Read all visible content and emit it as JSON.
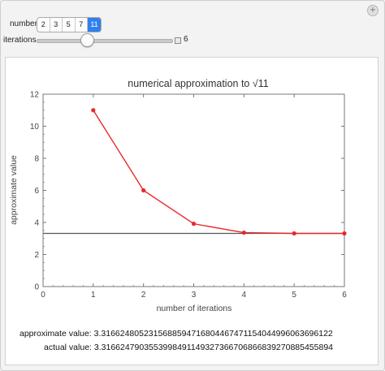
{
  "controls": {
    "number_label": "number",
    "number_options": [
      "2",
      "3",
      "5",
      "7",
      "11"
    ],
    "number_selected": "11",
    "iterations_label": "iterations",
    "iterations_value": "6",
    "iterations_fraction": 0.36
  },
  "plus_icon": "+",
  "chart_data": {
    "type": "line",
    "title_prefix": "numerical approximation to ",
    "title_radicand": "11",
    "xlabel": "number of iterations",
    "ylabel": "approximate value",
    "xlim": [
      0,
      6
    ],
    "ylim": [
      0,
      12
    ],
    "xticks": [
      "0",
      "1",
      "2",
      "3",
      "4",
      "5",
      "6"
    ],
    "yticks": [
      "0",
      "2",
      "4",
      "6",
      "8",
      "10",
      "12"
    ],
    "series": [
      {
        "x": [
          1,
          2,
          3,
          4,
          5,
          6
        ],
        "y": [
          11,
          6,
          3.9167,
          3.3625,
          3.3167,
          3.3166
        ],
        "color": "#e8292d"
      }
    ],
    "reference_line": {
      "y": 3.3166,
      "color": "#555555"
    }
  },
  "results": {
    "approx_label": "approximate value:",
    "approx_value": "3.31662480523156885947168044674711540449960636961 22",
    "actual_label": "actual value:",
    "actual_value": "3.3166247903553998491149327366706866839270885455894"
  }
}
